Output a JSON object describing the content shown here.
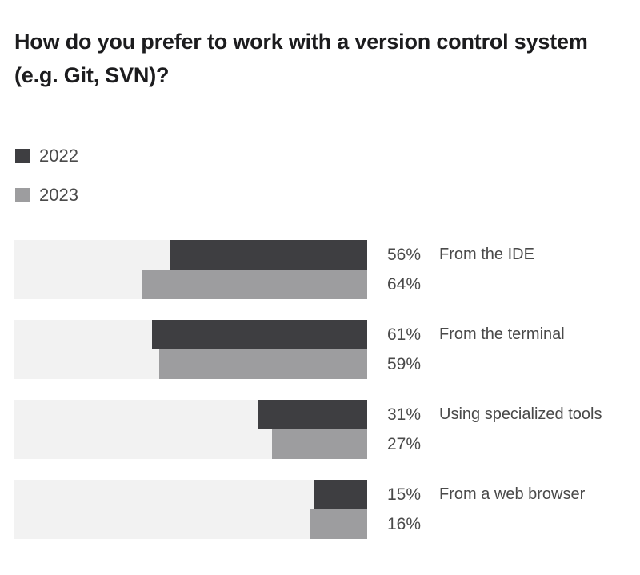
{
  "title": "How do you prefer to work with a version control system (e.g. Git, SVN)?",
  "legend": {
    "items": [
      {
        "label": "2022",
        "color": "#3e3e41"
      },
      {
        "label": "2023",
        "color": "#9d9d9f"
      }
    ]
  },
  "chart_data": {
    "type": "bar",
    "orientation": "horizontal",
    "title": "How do you prefer to work with a version control system (e.g. Git, SVN)?",
    "categories": [
      "From the IDE",
      "From the terminal",
      "Using specialized tools",
      "From a web browser"
    ],
    "series": [
      {
        "name": "2022",
        "values": [
          56,
          61,
          31,
          15
        ],
        "color": "#3e3e41"
      },
      {
        "name": "2023",
        "values": [
          64,
          59,
          27,
          16
        ],
        "color": "#9d9d9f"
      }
    ],
    "value_suffix": "%",
    "xlim": [
      0,
      100
    ],
    "bars_right_aligned": true,
    "track_color": "#f2f2f2",
    "legend_position": "top-left",
    "grid": false
  },
  "colors": {
    "background": "#ffffff",
    "title_text": "#1c1c1e",
    "label_text": "#4a4a4a"
  }
}
